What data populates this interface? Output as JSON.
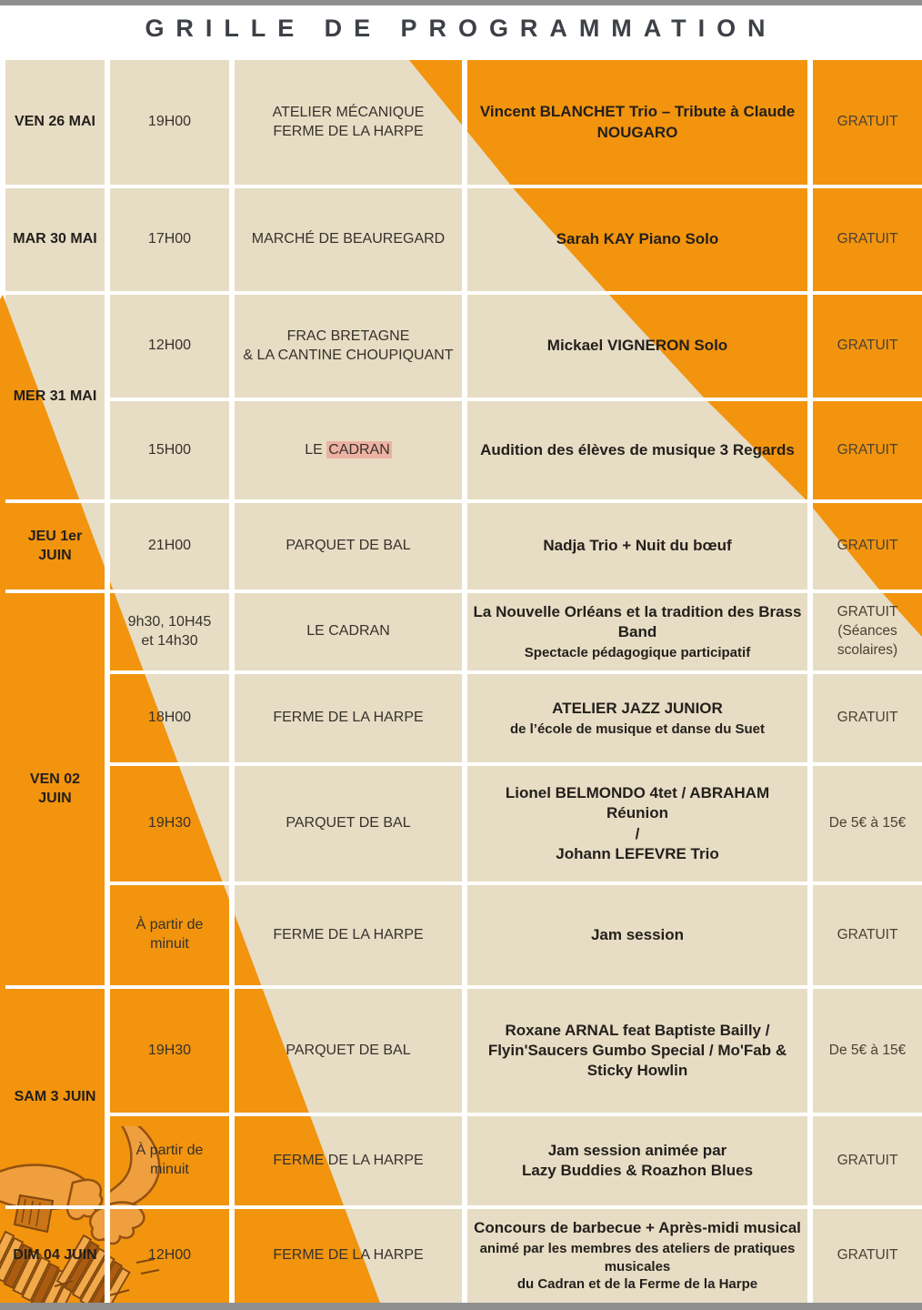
{
  "title": "GRILLE DE PROGRAMMATION",
  "colors": {
    "orange": "#F2940E",
    "beige": "#E7DDC4",
    "highlight": "#ECB2A3",
    "edge": "#8F8F8F",
    "title": "#3D4147",
    "ink": "#231F1C",
    "muted": "#36322C",
    "price": "#4A4135"
  },
  "rows": [
    {
      "date": [
        "VEN 26 MAI"
      ],
      "time": [
        "19H00"
      ],
      "venue": [
        "ATELIER MÉCANIQUE",
        "FERME DE LA HARPE"
      ],
      "event": {
        "main": [
          "Vincent BLANCHET Trio – Tribute à Claude",
          "NOUGARO"
        ]
      },
      "price": [
        "GRATUIT"
      ]
    },
    {
      "date": [
        "MAR 30 MAI"
      ],
      "time": [
        "17H00"
      ],
      "venue": [
        "MARCHÉ DE BEAUREGARD"
      ],
      "event": {
        "main": [
          "Sarah KAY Piano Solo"
        ]
      },
      "price": [
        "GRATUIT"
      ]
    },
    {
      "date": [
        "MER 31 MAI"
      ],
      "time": [
        "12H00"
      ],
      "venue": [
        "FRAC BRETAGNE",
        "& LA CANTINE CHOUPIQUANT"
      ],
      "event": {
        "main": [
          "Mickael VIGNERON Solo"
        ]
      },
      "price": [
        "GRATUIT"
      ]
    },
    {
      "time": [
        "15H00"
      ],
      "venue": {
        "pre": "LE ",
        "highlighted": "CADRAN"
      },
      "event": {
        "main": [
          "Audition des élèves de musique 3 Regards"
        ]
      },
      "price": [
        "GRATUIT"
      ]
    },
    {
      "date": [
        "JEU 1er JUIN"
      ],
      "time": [
        "21H00"
      ],
      "venue": [
        "PARQUET DE BAL"
      ],
      "event": {
        "main": [
          "Nadja Trio + Nuit du bœuf"
        ]
      },
      "price": [
        "GRATUIT"
      ]
    },
    {
      "date": [
        "VEN 02",
        "JUIN"
      ],
      "time": [
        "9h30, 10H45",
        "et 14h30"
      ],
      "venue": [
        "LE CADRAN"
      ],
      "event": {
        "main": [
          "La Nouvelle Orléans et la tradition des Brass",
          "Band"
        ],
        "sub": [
          "Spectacle pédagogique participatif"
        ]
      },
      "price": [
        "GRATUIT",
        "(Séances",
        "scolaires)"
      ]
    },
    {
      "time": [
        "18H00"
      ],
      "venue": [
        "FERME DE LA HARPE"
      ],
      "event": {
        "main": [
          "ATELIER JAZZ JUNIOR"
        ],
        "sub": [
          "de l’école de musique et danse du Suet"
        ]
      },
      "price": [
        "GRATUIT"
      ]
    },
    {
      "time": [
        "19H30"
      ],
      "venue": [
        "PARQUET DE BAL"
      ],
      "event": {
        "main": [
          "Lionel BELMONDO 4tet / ABRAHAM Réunion",
          "/",
          "Johann LEFEVRE Trio"
        ]
      },
      "price": [
        "De 5€ à 15€"
      ]
    },
    {
      "time": [
        "À partir de",
        "minuit"
      ],
      "venue": [
        "FERME DE LA HARPE"
      ],
      "event": {
        "main": [
          "Jam session"
        ]
      },
      "price": [
        "GRATUIT"
      ]
    },
    {
      "date": [
        "SAM 3 JUIN"
      ],
      "time": [
        "19H30"
      ],
      "venue": [
        "PARQUET DE BAL"
      ],
      "event": {
        "main": [
          "Roxane ARNAL feat Baptiste Bailly /",
          "Flyin'Saucers Gumbo Special / Mo'Fab &",
          "Sticky Howlin"
        ]
      },
      "price": [
        "De 5€ à 15€"
      ]
    },
    {
      "time": [
        "À partir de",
        "minuit"
      ],
      "venue": [
        "FERME DE LA HARPE"
      ],
      "event": {
        "main": [
          "Jam session animée par",
          "Lazy Buddies & Roazhon Blues"
        ]
      },
      "price": [
        "GRATUIT"
      ]
    },
    {
      "date": [
        "DIM 04 JUIN"
      ],
      "time": [
        "12H00"
      ],
      "venue": [
        "FERME DE LA HARPE"
      ],
      "event": {
        "main": [
          "Concours de barbecue + Après-midi musical"
        ],
        "sub": [
          "animé par les membres des ateliers de pratiques",
          "musicales",
          "du Cadran et de la Ferme de la Harpe"
        ]
      },
      "price": [
        "GRATUIT"
      ]
    }
  ]
}
